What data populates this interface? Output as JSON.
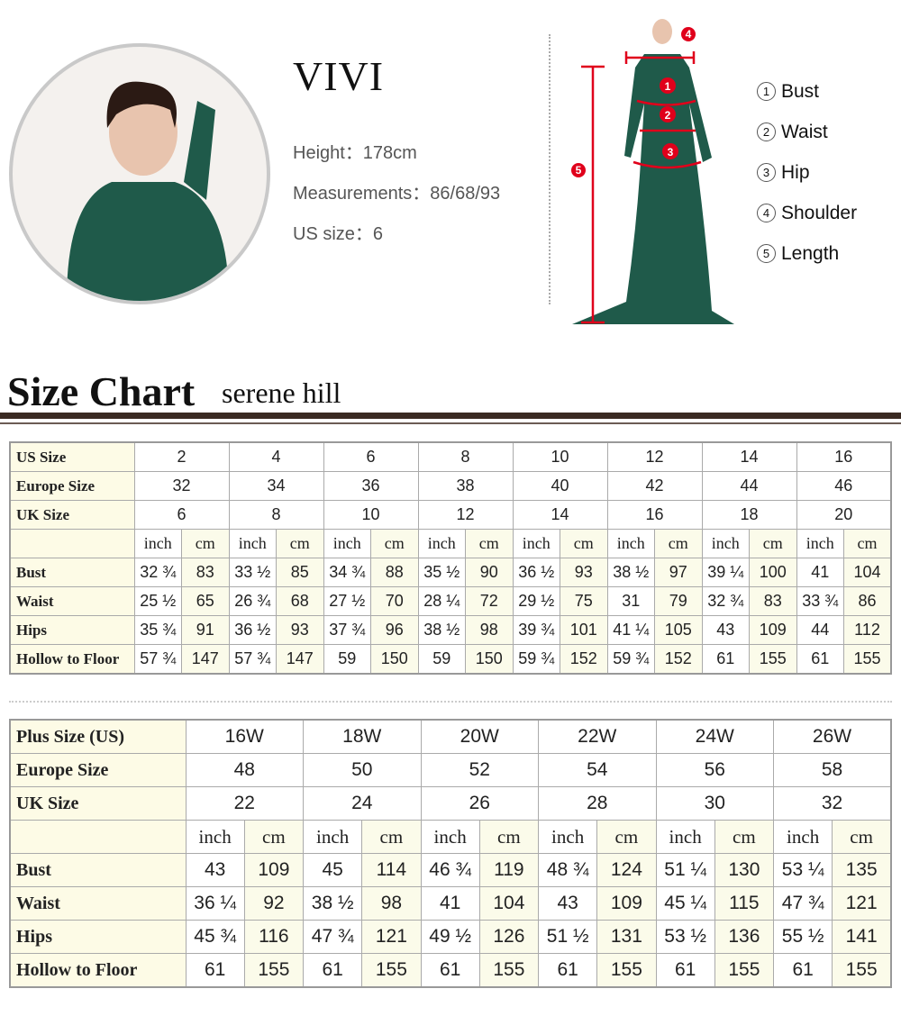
{
  "model": {
    "name": "VIVI",
    "height": "Height：178cm",
    "measurements": "Measurements：86/68/93",
    "us_size": "US size：6"
  },
  "legend": [
    {
      "num": "1",
      "label": "Bust"
    },
    {
      "num": "2",
      "label": "Waist"
    },
    {
      "num": "3",
      "label": "Hip"
    },
    {
      "num": "4",
      "label": "Shoulder"
    },
    {
      "num": "5",
      "label": "Length"
    }
  ],
  "colors": {
    "marker": "#e0001b",
    "dress": "#1f5a4a",
    "rule": "#3a2a22",
    "cream": "#fdfbe6"
  },
  "heading": {
    "title": "Size Chart",
    "brand": "serene hill"
  },
  "standard_table": {
    "header_rows": [
      {
        "label": "US Size",
        "values": [
          "2",
          "4",
          "6",
          "8",
          "10",
          "12",
          "14",
          "16"
        ]
      },
      {
        "label": "Europe Size",
        "values": [
          "32",
          "34",
          "36",
          "38",
          "40",
          "42",
          "44",
          "46"
        ]
      },
      {
        "label": "UK Size",
        "values": [
          "6",
          "8",
          "10",
          "12",
          "14",
          "16",
          "18",
          "20"
        ]
      }
    ],
    "units": [
      "inch",
      "cm"
    ],
    "rows": [
      {
        "label": "Bust",
        "values": [
          [
            "32 ¾",
            "83"
          ],
          [
            "33 ½",
            "85"
          ],
          [
            "34 ¾",
            "88"
          ],
          [
            "35 ½",
            "90"
          ],
          [
            "36 ½",
            "93"
          ],
          [
            "38 ½",
            "97"
          ],
          [
            "39 ¼",
            "100"
          ],
          [
            "41",
            "104"
          ]
        ]
      },
      {
        "label": "Waist",
        "values": [
          [
            "25 ½",
            "65"
          ],
          [
            "26 ¾",
            "68"
          ],
          [
            "27 ½",
            "70"
          ],
          [
            "28 ¼",
            "72"
          ],
          [
            "29 ½",
            "75"
          ],
          [
            "31",
            "79"
          ],
          [
            "32 ¾",
            "83"
          ],
          [
            "33 ¾",
            "86"
          ]
        ]
      },
      {
        "label": "Hips",
        "values": [
          [
            "35 ¾",
            "91"
          ],
          [
            "36 ½",
            "93"
          ],
          [
            "37 ¾",
            "96"
          ],
          [
            "38 ½",
            "98"
          ],
          [
            "39 ¾",
            "101"
          ],
          [
            "41 ¼",
            "105"
          ],
          [
            "43",
            "109"
          ],
          [
            "44",
            "112"
          ]
        ]
      },
      {
        "label": "Hollow to Floor",
        "values": [
          [
            "57 ¾",
            "147"
          ],
          [
            "57 ¾",
            "147"
          ],
          [
            "59",
            "150"
          ],
          [
            "59",
            "150"
          ],
          [
            "59 ¾",
            "152"
          ],
          [
            "59 ¾",
            "152"
          ],
          [
            "61",
            "155"
          ],
          [
            "61",
            "155"
          ]
        ]
      }
    ]
  },
  "plus_table": {
    "header_rows": [
      {
        "label": "Plus Size (US)",
        "values": [
          "16W",
          "18W",
          "20W",
          "22W",
          "24W",
          "26W"
        ]
      },
      {
        "label": "Europe Size",
        "values": [
          "48",
          "50",
          "52",
          "54",
          "56",
          "58"
        ]
      },
      {
        "label": "UK Size",
        "values": [
          "22",
          "24",
          "26",
          "28",
          "30",
          "32"
        ]
      }
    ],
    "units": [
      "inch",
      "cm"
    ],
    "rows": [
      {
        "label": "Bust",
        "values": [
          [
            "43",
            "109"
          ],
          [
            "45",
            "114"
          ],
          [
            "46 ¾",
            "119"
          ],
          [
            "48 ¾",
            "124"
          ],
          [
            "51 ¼",
            "130"
          ],
          [
            "53 ¼",
            "135"
          ]
        ]
      },
      {
        "label": "Waist",
        "values": [
          [
            "36 ¼",
            "92"
          ],
          [
            "38 ½",
            "98"
          ],
          [
            "41",
            "104"
          ],
          [
            "43",
            "109"
          ],
          [
            "45 ¼",
            "115"
          ],
          [
            "47 ¾",
            "121"
          ]
        ]
      },
      {
        "label": "Hips",
        "values": [
          [
            "45 ¾",
            "116"
          ],
          [
            "47 ¾",
            "121"
          ],
          [
            "49 ½",
            "126"
          ],
          [
            "51 ½",
            "131"
          ],
          [
            "53 ½",
            "136"
          ],
          [
            "55 ½",
            "141"
          ]
        ]
      },
      {
        "label": "Hollow to Floor",
        "values": [
          [
            "61",
            "155"
          ],
          [
            "61",
            "155"
          ],
          [
            "61",
            "155"
          ],
          [
            "61",
            "155"
          ],
          [
            "61",
            "155"
          ],
          [
            "61",
            "155"
          ]
        ]
      }
    ]
  }
}
